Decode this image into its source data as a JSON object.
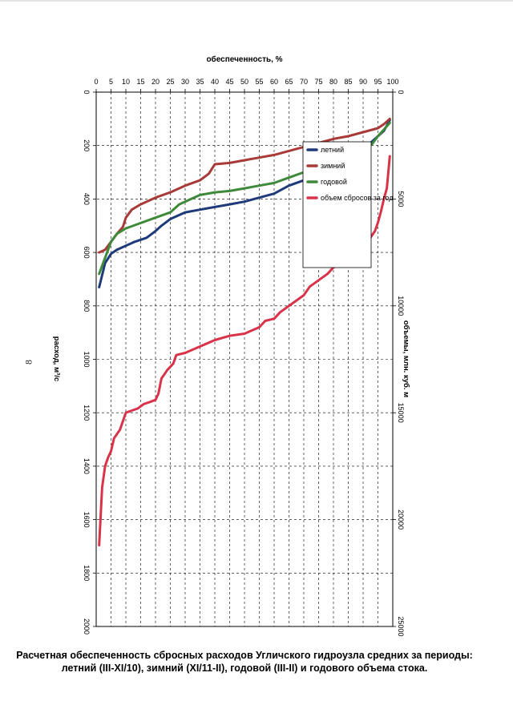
{
  "page": {
    "number": "8"
  },
  "chart_data": {
    "type": "line",
    "title_line1": "Расчетная обеспеченность сбросных расходов Угличского гидроузла средних за периоды:",
    "title_line2": "летний (III-XI/10), зимний (XI/11-II), годовой (III-II) и годового объема стока.",
    "xlabel": "обеспеченность, %",
    "ylabel_left": "расход, м³/с",
    "ylabel_right": "объемы, млн. куб. м",
    "xlim": [
      0,
      100
    ],
    "ylim_left": [
      0,
      2000
    ],
    "ylim_right": [
      0,
      25000
    ],
    "x_ticks": [
      "0",
      "5",
      "10",
      "15",
      "20",
      "25",
      "30",
      "35",
      "40",
      "45",
      "50",
      "55",
      "60",
      "65",
      "70",
      "75",
      "80",
      "85",
      "90",
      "95",
      "100"
    ],
    "y_ticks_left": [
      "0",
      "200",
      "400",
      "600",
      "800",
      "1000",
      "1200",
      "1400",
      "1600",
      "1800",
      "2000"
    ],
    "y_ticks_right": [
      "0",
      "5000",
      "10000",
      "15000",
      "20000",
      "25000"
    ],
    "legend_position": "top-right",
    "series": [
      {
        "name": "летний",
        "color": "#1f3a7a",
        "axis": "left",
        "x": [
          1,
          3,
          5,
          7,
          10,
          13,
          17,
          20,
          22,
          25,
          30,
          35,
          40,
          45,
          50,
          55,
          60,
          65,
          70,
          75,
          80,
          85,
          90,
          93,
          95,
          97,
          98,
          99
        ],
        "y": [
          730,
          640,
          605,
          590,
          575,
          560,
          545,
          520,
          500,
          475,
          450,
          440,
          430,
          420,
          410,
          395,
          380,
          350,
          330,
          310,
          285,
          255,
          220,
          185,
          165,
          145,
          125,
          105
        ]
      },
      {
        "name": "зимний",
        "color": "#a83a38",
        "axis": "left",
        "x": [
          1,
          3,
          5,
          7,
          9,
          10,
          12,
          15,
          20,
          25,
          30,
          35,
          38,
          40,
          45,
          50,
          55,
          60,
          65,
          70,
          75,
          80,
          85,
          90,
          95,
          97,
          98,
          99
        ],
        "y": [
          600,
          590,
          560,
          530,
          505,
          470,
          440,
          420,
          395,
          375,
          350,
          330,
          305,
          270,
          265,
          255,
          245,
          235,
          220,
          205,
          190,
          175,
          165,
          150,
          135,
          120,
          110,
          100
        ]
      },
      {
        "name": "годовой",
        "color": "#3f8a3a",
        "axis": "left",
        "x": [
          1,
          3,
          5,
          7,
          10,
          15,
          20,
          25,
          28,
          32,
          35,
          40,
          45,
          50,
          55,
          60,
          65,
          70,
          75,
          80,
          85,
          90,
          93,
          95,
          97,
          99
        ],
        "y": [
          680,
          620,
          560,
          530,
          510,
          490,
          470,
          450,
          420,
          400,
          385,
          375,
          370,
          360,
          350,
          340,
          320,
          300,
          285,
          265,
          245,
          220,
          195,
          165,
          140,
          115
        ]
      },
      {
        "name": "объем сбросов за год",
        "color": "#d9334a",
        "axis": "right",
        "x": [
          1,
          2,
          3,
          4,
          5,
          6,
          8,
          9,
          10,
          12,
          14,
          16,
          18,
          20,
          21,
          22,
          23,
          24,
          26,
          27,
          30,
          35,
          40,
          45,
          50,
          55,
          57,
          60,
          62,
          65,
          67,
          70,
          72,
          75,
          78,
          80,
          83,
          86,
          88,
          90,
          92,
          94,
          95,
          96,
          97,
          98,
          99
        ],
        "y": [
          21200,
          18500,
          17500,
          17100,
          16800,
          16200,
          15800,
          15400,
          15000,
          14900,
          14800,
          14600,
          14500,
          14400,
          14100,
          13400,
          13200,
          13000,
          12700,
          12300,
          12200,
          11900,
          11600,
          11400,
          11300,
          11000,
          10700,
          10600,
          10300,
          10000,
          9800,
          9500,
          9100,
          8800,
          8500,
          8200,
          8000,
          7900,
          7500,
          7200,
          6900,
          6500,
          6100,
          5600,
          5000,
          4500,
          3000
        ]
      }
    ]
  }
}
